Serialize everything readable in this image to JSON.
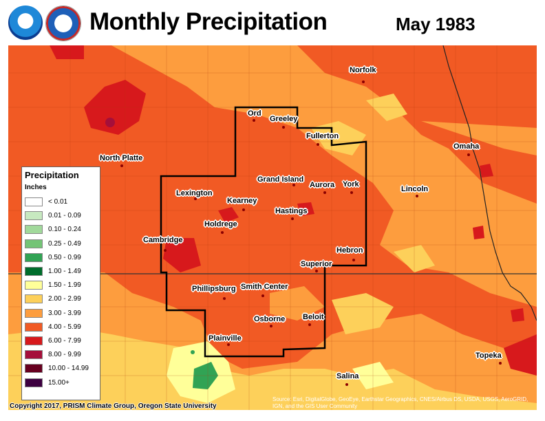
{
  "header": {
    "title": "Monthly Precipitation",
    "date": "May 1983",
    "logos": [
      "noaa-logo",
      "national-weather-service-logo"
    ]
  },
  "legend": {
    "title": "Precipitation",
    "units": "Inches",
    "classes": [
      {
        "label": "< 0.01",
        "color": "#ffffff"
      },
      {
        "label": "0.01 - 0.09",
        "color": "#c7e9c0"
      },
      {
        "label": "0.10 - 0.24",
        "color": "#a1d99b"
      },
      {
        "label": "0.25 - 0.49",
        "color": "#74c476"
      },
      {
        "label": "0.50 - 0.99",
        "color": "#31a354"
      },
      {
        "label": "1.00 - 1.49",
        "color": "#006d2c"
      },
      {
        "label": "1.50 - 1.99",
        "color": "#ffff99"
      },
      {
        "label": "2.00 - 2.99",
        "color": "#fdd05a"
      },
      {
        "label": "3.00 - 3.99",
        "color": "#fd9d3e"
      },
      {
        "label": "4.00 - 5.99",
        "color": "#f15a24"
      },
      {
        "label": "6.00 - 7.99",
        "color": "#d7191c"
      },
      {
        "label": "8.00 - 9.99",
        "color": "#a50f3a"
      },
      {
        "label": "10.00 - 14.99",
        "color": "#67001f"
      },
      {
        "label": "15.00+",
        "color": "#3d0040"
      }
    ]
  },
  "cities": [
    {
      "name": "Norfolk"
    },
    {
      "name": "Ord"
    },
    {
      "name": "Greeley"
    },
    {
      "name": "Fullerton"
    },
    {
      "name": "North Platte"
    },
    {
      "name": "Omaha"
    },
    {
      "name": "Grand Island"
    },
    {
      "name": "Aurora"
    },
    {
      "name": "York"
    },
    {
      "name": "Lexington"
    },
    {
      "name": "Lincoln"
    },
    {
      "name": "Kearney"
    },
    {
      "name": "Hastings"
    },
    {
      "name": "Holdrege"
    },
    {
      "name": "Cambridge"
    },
    {
      "name": "Hebron"
    },
    {
      "name": "Superior"
    },
    {
      "name": "Phillipsburg"
    },
    {
      "name": "Smith Center"
    },
    {
      "name": "Osborne"
    },
    {
      "name": "Beloit"
    },
    {
      "name": "Plainville"
    },
    {
      "name": "Topeka"
    },
    {
      "name": "Salina"
    }
  ],
  "footer": {
    "copyright": "Copyright 2017, PRISM Climate Group, Oregon State University",
    "source": "Source: Esri, DigitalGlobe, GeoEye, Earthstar Geographics, CNES/Airbus DS, USDA, USGS, AeroGRID, IGN, and the GIS User Community"
  }
}
